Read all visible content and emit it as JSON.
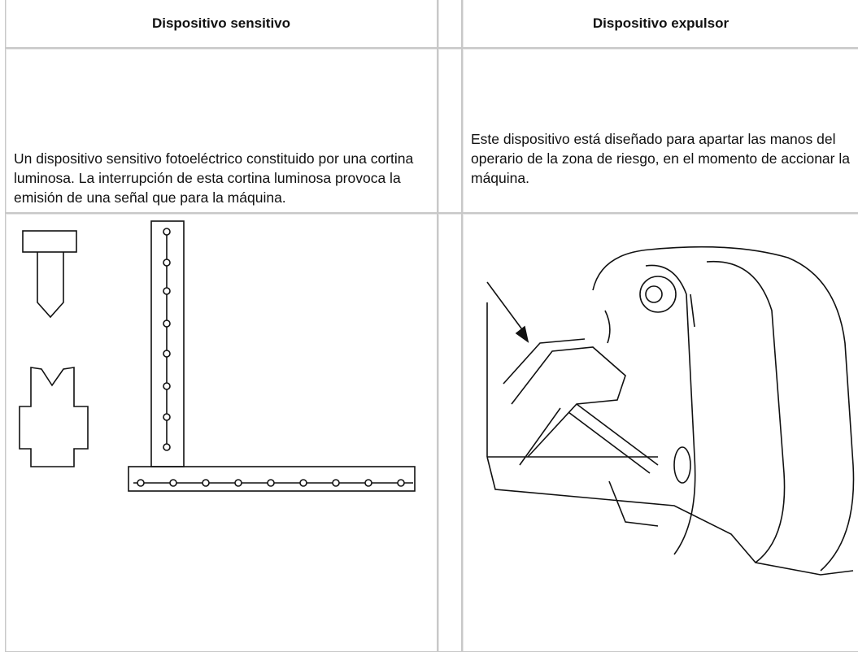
{
  "table": {
    "header": [
      "Dispositivo sensitivo",
      "Dispositivo expulsor"
    ],
    "rows": [
      [
        "Un dispositivo sensitivo fotoeléctrico constituido por una cortina luminosa. La interrupción de esta cortina luminosa provoca la emisión de una señal que para la máquina.",
        "Este dispositivo está diseñado para apartar las manos del operario de la zona de riesgo, en el momento de accionar la máquina."
      ]
    ]
  }
}
